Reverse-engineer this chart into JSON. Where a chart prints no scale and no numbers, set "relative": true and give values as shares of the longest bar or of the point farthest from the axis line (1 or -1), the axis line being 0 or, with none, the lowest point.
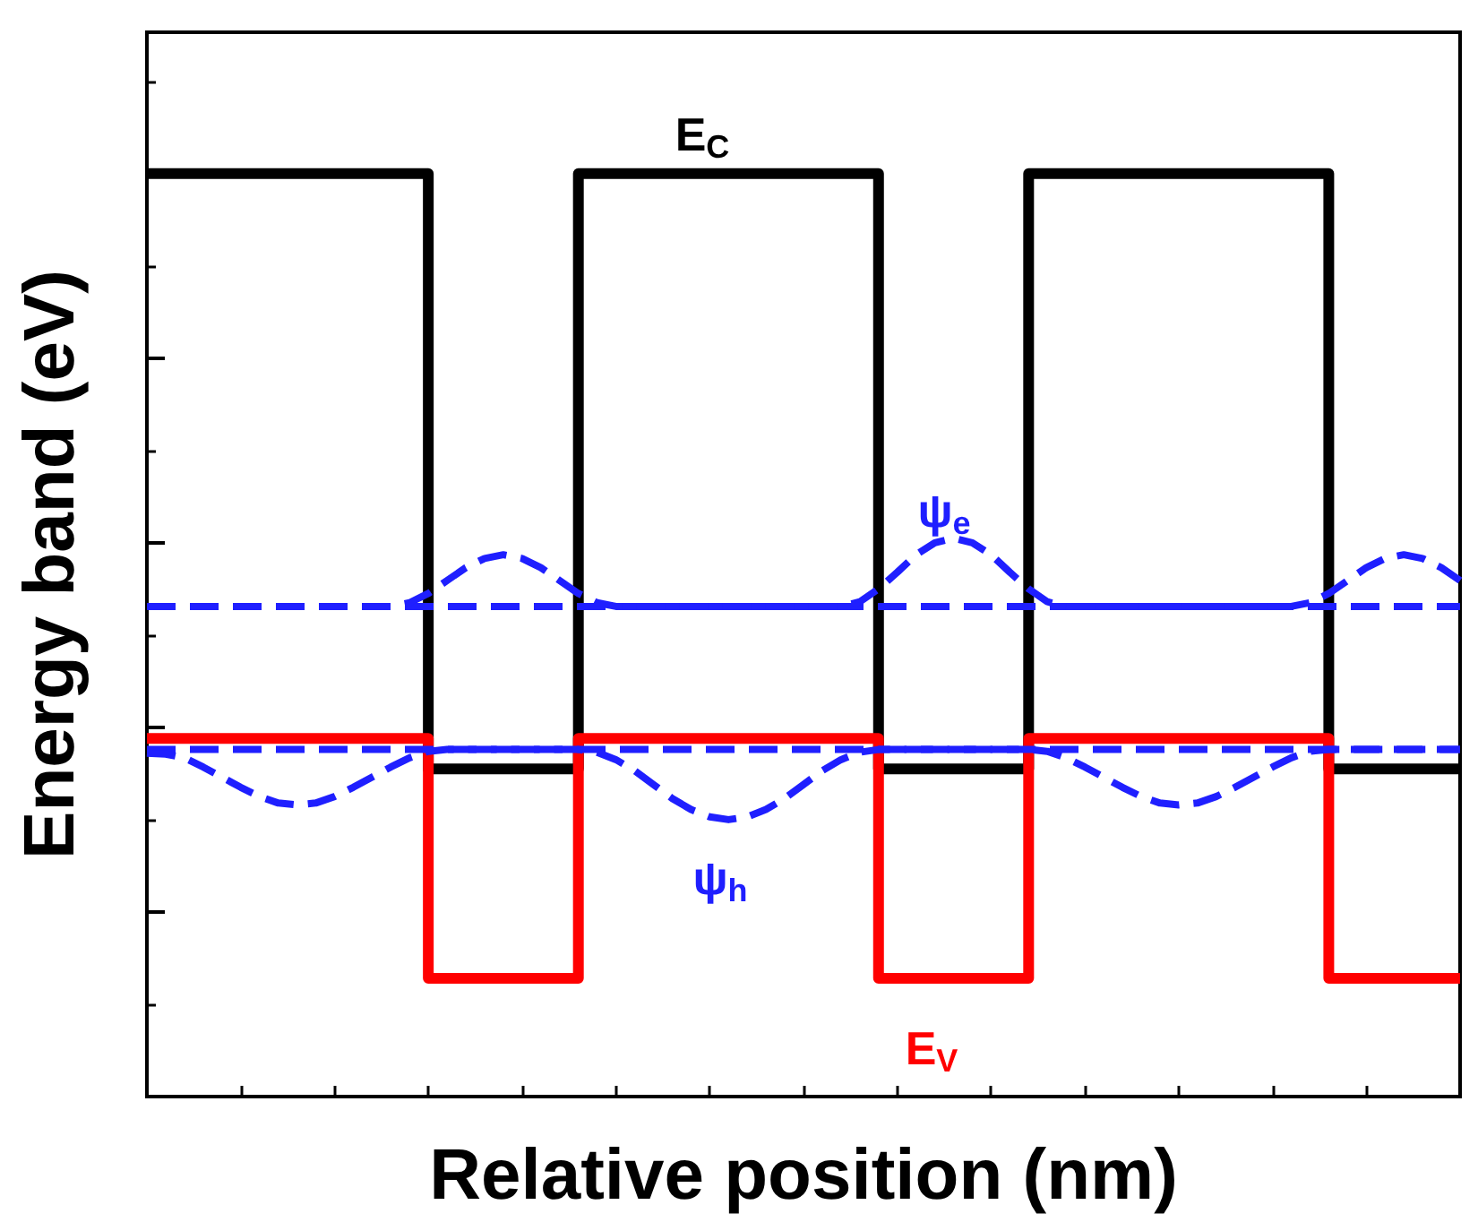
{
  "chart_data": {
    "type": "line",
    "relative": true,
    "xlabel": "Relative position (nm)",
    "ylabel": "Energy band (eV)",
    "grid": false,
    "marker": "none",
    "categories": [
      null,
      null,
      null,
      null,
      null,
      null,
      null,
      null,
      null,
      null,
      null,
      null,
      null,
      null,
      null,
      null,
      null,
      null,
      null,
      null,
      null,
      null,
      null,
      null,
      null,
      null,
      null,
      null,
      null,
      null,
      null,
      null,
      null,
      null,
      null,
      null,
      null,
      null,
      null,
      null,
      null,
      null,
      null,
      null,
      null,
      null,
      null,
      null,
      null,
      null,
      null,
      null,
      null,
      null,
      null,
      null,
      null,
      null,
      null,
      null,
      null,
      null,
      null,
      null,
      null,
      null,
      null,
      null,
      null,
      null,
      null
    ],
    "series": [
      {
        "type": "step",
        "color": "#000000",
        "line_style": "solid",
        "values": [
          1,
          1,
          1,
          1,
          1,
          1,
          1,
          1,
          1,
          1,
          1,
          1,
          1,
          1,
          1,
          0.355,
          0.355,
          0.355,
          0.355,
          0.355,
          0.355,
          0.355,
          0.355,
          1,
          1,
          1,
          1,
          1,
          1,
          1,
          1,
          1,
          1,
          1,
          1,
          1,
          1,
          1,
          1,
          0.355,
          0.355,
          0.355,
          0.355,
          0.355,
          0.355,
          0.355,
          0.355,
          1,
          1,
          1,
          1,
          1,
          1,
          1,
          1,
          1,
          1,
          1,
          1,
          1,
          1,
          1,
          1,
          0.355,
          0.355,
          0.355,
          0.355,
          0.355,
          0.355,
          0.355,
          0.355
        ]
      },
      {
        "type": "step",
        "color": "#ff0000",
        "line_style": "solid",
        "values": [
          0.388,
          0.388,
          0.388,
          0.388,
          0.388,
          0.388,
          0.388,
          0.388,
          0.388,
          0.388,
          0.388,
          0.388,
          0.388,
          0.388,
          0.388,
          0.128,
          0.128,
          0.128,
          0.128,
          0.128,
          0.128,
          0.128,
          0.128,
          0.388,
          0.388,
          0.388,
          0.388,
          0.388,
          0.388,
          0.388,
          0.388,
          0.388,
          0.388,
          0.388,
          0.388,
          0.388,
          0.388,
          0.388,
          0.388,
          0.128,
          0.128,
          0.128,
          0.128,
          0.128,
          0.128,
          0.128,
          0.128,
          0.388,
          0.388,
          0.388,
          0.388,
          0.388,
          0.388,
          0.388,
          0.388,
          0.388,
          0.388,
          0.388,
          0.388,
          0.388,
          0.388,
          0.388,
          0.388,
          0.128,
          0.128,
          0.128,
          0.128,
          0.128,
          0.128,
          0.128,
          0.128
        ]
      },
      {
        "color": "#1f1fff",
        "line_style": "dashed",
        "values": [
          0.531,
          0.531,
          0.531,
          0.531,
          0.531,
          0.531,
          0.531,
          0.531,
          0.531,
          0.531,
          0.531,
          0.531,
          0.531,
          0.531,
          0.531,
          0.531,
          0.531,
          0.531,
          0.531,
          0.531,
          0.531,
          0.531,
          0.531,
          0.531,
          0.531,
          0.531,
          0.531,
          0.531,
          0.531,
          0.531,
          0.531,
          0.531,
          0.531,
          0.531,
          0.531,
          0.531,
          0.531,
          0.531,
          0.531,
          0.531,
          0.531,
          0.531,
          0.531,
          0.531,
          0.531,
          0.531,
          0.531,
          0.531,
          0.531,
          0.531,
          0.531,
          0.531,
          0.531,
          0.531,
          0.531,
          0.531,
          0.531,
          0.531,
          0.531,
          0.531,
          0.531,
          0.531,
          0.531,
          0.531,
          0.531,
          0.531,
          0.531,
          0.531,
          0.531,
          0.531,
          0.531
        ]
      },
      {
        "color": "#1f1fff",
        "line_style": "dashed",
        "values": [
          0.531,
          0.531,
          0.531,
          0.531,
          0.531,
          0.531,
          0.531,
          0.531,
          0.531,
          0.531,
          0.531,
          0.531,
          0.531,
          0.531,
          0.535,
          0.545,
          0.559,
          0.573,
          0.583,
          0.587,
          0.583,
          0.573,
          0.559,
          0.545,
          0.535,
          0.531,
          0.531,
          0.531,
          0.531,
          0.531,
          0.531,
          0.531,
          0.531,
          0.531,
          0.531,
          0.531,
          0.531,
          0.531,
          0.536,
          0.55,
          0.568,
          0.587,
          0.6,
          0.605,
          0.6,
          0.587,
          0.568,
          0.55,
          0.536,
          0.531,
          0.531,
          0.531,
          0.531,
          0.531,
          0.531,
          0.531,
          0.531,
          0.531,
          0.531,
          0.531,
          0.531,
          0.531,
          0.535,
          0.545,
          0.559,
          0.573,
          0.583,
          0.587,
          0.583,
          0.573,
          0.559
        ]
      },
      {
        "color": "#1f1fff",
        "line_style": "dashed",
        "values": [
          0.376,
          0.376,
          0.376,
          0.376,
          0.376,
          0.376,
          0.376,
          0.376,
          0.376,
          0.376,
          0.376,
          0.376,
          0.376,
          0.376,
          0.376,
          0.376,
          0.376,
          0.376,
          0.376,
          0.376,
          0.376,
          0.376,
          0.376,
          0.376,
          0.376,
          0.376,
          0.376,
          0.376,
          0.376,
          0.376,
          0.376,
          0.376,
          0.376,
          0.376,
          0.376,
          0.376,
          0.376,
          0.376,
          0.376,
          0.376,
          0.376,
          0.376,
          0.376,
          0.376,
          0.376,
          0.376,
          0.376,
          0.376,
          0.376,
          0.376,
          0.376,
          0.376,
          0.376,
          0.376,
          0.376,
          0.376,
          0.376,
          0.376,
          0.376,
          0.376,
          0.376,
          0.376,
          0.376,
          0.376,
          0.376,
          0.376,
          0.376,
          0.376,
          0.376,
          0.376,
          0.376
        ]
      },
      {
        "color": "#1f1fff",
        "line_style": "dashed",
        "values": [
          0.372,
          0.371,
          0.367,
          0.357,
          0.346,
          0.335,
          0.325,
          0.318,
          0.316,
          0.318,
          0.325,
          0.335,
          0.346,
          0.357,
          0.367,
          0.374,
          0.376,
          0.376,
          0.376,
          0.376,
          0.376,
          0.376,
          0.376,
          0.376,
          0.373,
          0.365,
          0.353,
          0.338,
          0.323,
          0.311,
          0.303,
          0.3,
          0.303,
          0.311,
          0.323,
          0.338,
          0.353,
          0.365,
          0.373,
          0.376,
          0.376,
          0.376,
          0.376,
          0.376,
          0.376,
          0.376,
          0.376,
          0.376,
          0.374,
          0.367,
          0.357,
          0.346,
          0.335,
          0.325,
          0.318,
          0.316,
          0.318,
          0.325,
          0.335,
          0.346,
          0.357,
          0.367,
          0.374,
          0.376,
          0.376,
          0.376,
          0.376,
          0.376,
          0.376,
          0.376,
          0.376
        ]
      }
    ],
    "annotations": [
      "E$_{C}$",
      "E$_{V}$",
      "ψ$_{e}$",
      "ψ$_{h}$"
    ]
  }
}
